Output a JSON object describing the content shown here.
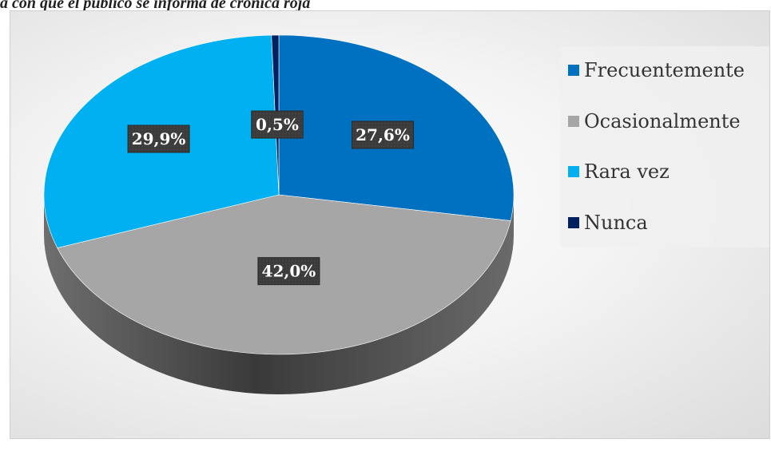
{
  "caption": "a con que el público se informa de crónica roja",
  "chart_data": {
    "type": "pie",
    "title": "",
    "slices": [
      {
        "label": "Frecuentemente",
        "value": 27.6,
        "display": "27,6%",
        "color": "#0070C0"
      },
      {
        "label": "Ocasionalmente",
        "value": 42.0,
        "display": "42,0%",
        "color": "#A6A6A6"
      },
      {
        "label": "Rara vez",
        "value": 29.9,
        "display": "29,9%",
        "color": "#00B0F0"
      },
      {
        "label": "Nunca",
        "value": 0.5,
        "display": "0,5%",
        "color": "#002060"
      }
    ],
    "legend_position": "right",
    "label_style": "dark box, white bold text",
    "effect": "3D pie"
  }
}
